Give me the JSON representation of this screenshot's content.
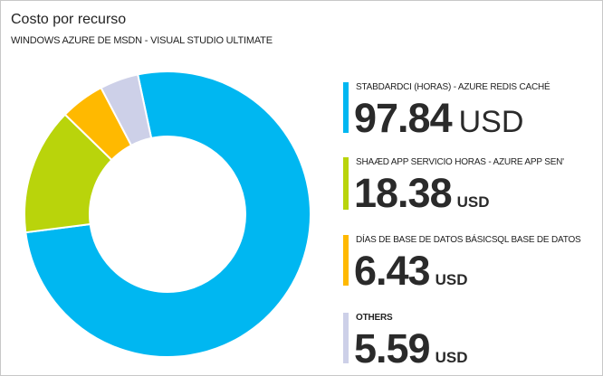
{
  "header": {
    "title": "Costo por recurso",
    "subtitle": "WINDOWS AZURE DE MSDN - VISUAL STUDIO ULTIMATE"
  },
  "chart_data": {
    "type": "pie",
    "donut": true,
    "title": "Costo por recurso",
    "unit": "USD",
    "series": [
      {
        "name": "STABDARDCI (HORAS) - AZURE REDIS CACHÉ",
        "value": 97.84,
        "value_text": "97.84",
        "unit": "USD",
        "color": "#00b7f1"
      },
      {
        "name": "SHAÆD APP SERVICIO HORAS - AZURE APP SEN'",
        "value": 18.38,
        "value_text": "18.38",
        "unit": "USD",
        "color": "#b9d40b"
      },
      {
        "name": "DÍAS DE BASE DE DATOS BÁSICSQL BASE DE DATOS",
        "value": 6.43,
        "value_text": "6.43",
        "unit": "USD",
        "color": "#ffb900"
      },
      {
        "name": "OTHERS",
        "value": 5.59,
        "value_text": "5.59",
        "unit": "USD",
        "color": "#cdd0e8"
      }
    ]
  }
}
